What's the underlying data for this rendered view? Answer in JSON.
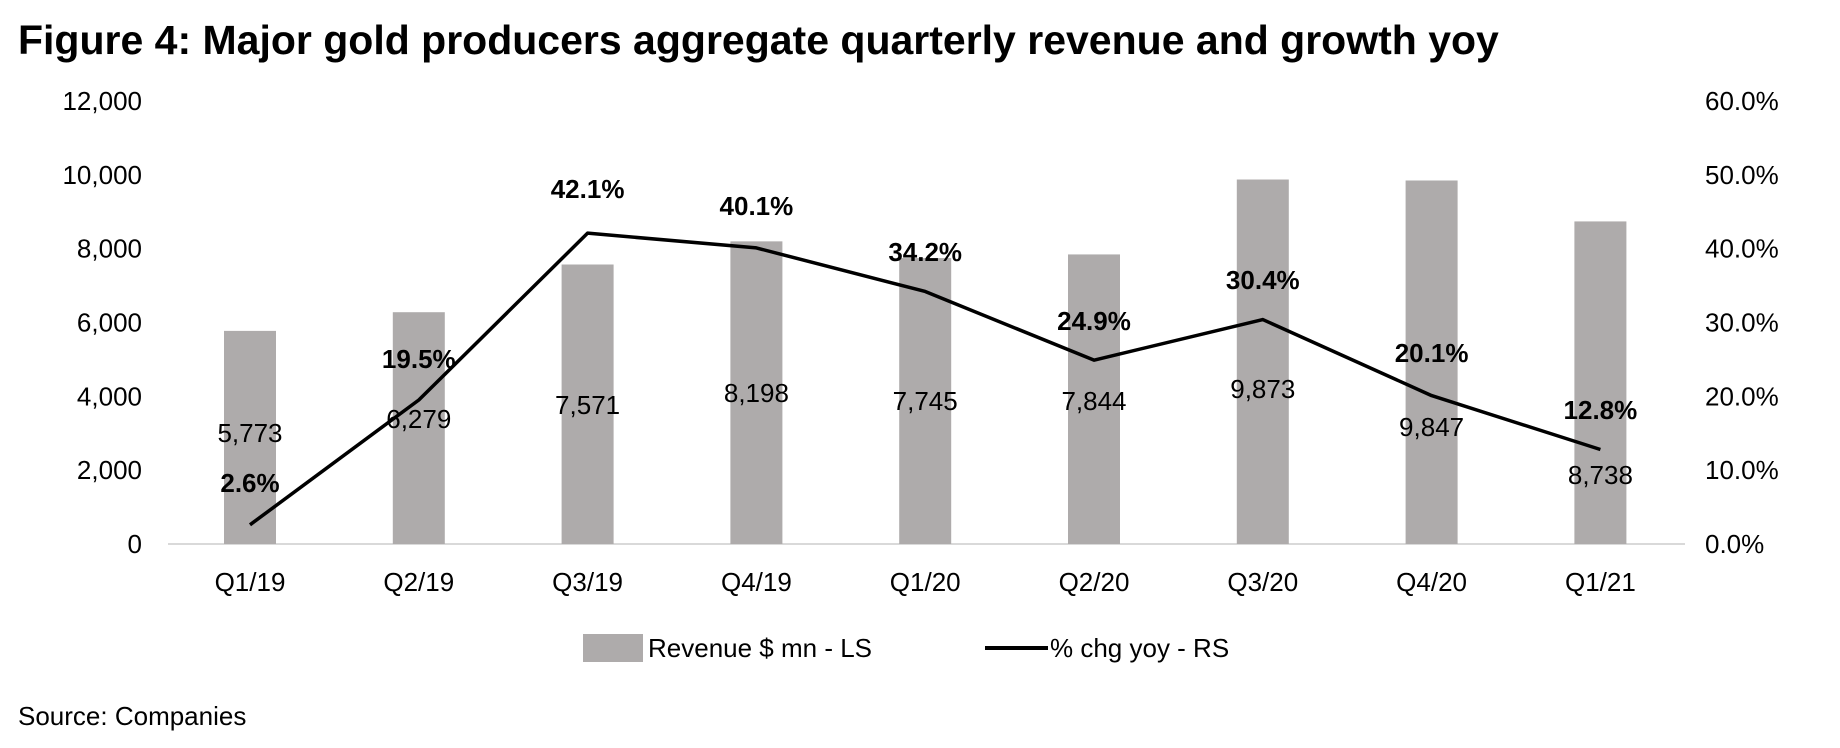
{
  "chart_data": {
    "type": "bar+line",
    "title": "Figure 4: Major gold producers aggregate quarterly revenue and growth yoy",
    "categories": [
      "Q1/19",
      "Q2/19",
      "Q3/19",
      "Q4/19",
      "Q1/20",
      "Q2/20",
      "Q3/20",
      "Q4/20",
      "Q1/21"
    ],
    "series": [
      {
        "name": "Revenue $ mn - LS",
        "type": "bar",
        "axis": "left",
        "color": "#aeabab",
        "values": [
          5773,
          6279,
          7571,
          8198,
          7745,
          7844,
          9873,
          9847,
          8738
        ],
        "labels": [
          "5,773",
          "6,279",
          "7,571",
          "8,198",
          "7,745",
          "7,844",
          "9,873",
          "9,847",
          "8,738"
        ]
      },
      {
        "name": "% chg yoy - RS",
        "type": "line",
        "axis": "right",
        "color": "#000000",
        "values": [
          2.6,
          19.5,
          42.1,
          40.1,
          34.2,
          24.9,
          30.4,
          20.1,
          12.8
        ],
        "labels": [
          "2.6%",
          "19.5%",
          "42.1%",
          "40.1%",
          "34.2%",
          "24.9%",
          "30.4%",
          "20.1%",
          "12.8%"
        ]
      }
    ],
    "y_left": {
      "range": [
        0,
        12000
      ],
      "ticks": [
        "0",
        "2,000",
        "4,000",
        "6,000",
        "8,000",
        "10,000",
        "12,000"
      ]
    },
    "y_right": {
      "range": [
        0,
        60
      ],
      "ticks": [
        "0.0%",
        "10.0%",
        "20.0%",
        "30.0%",
        "40.0%",
        "50.0%",
        "60.0%"
      ]
    },
    "grid": false,
    "legend": "bottom"
  },
  "source": "Source: Companies"
}
